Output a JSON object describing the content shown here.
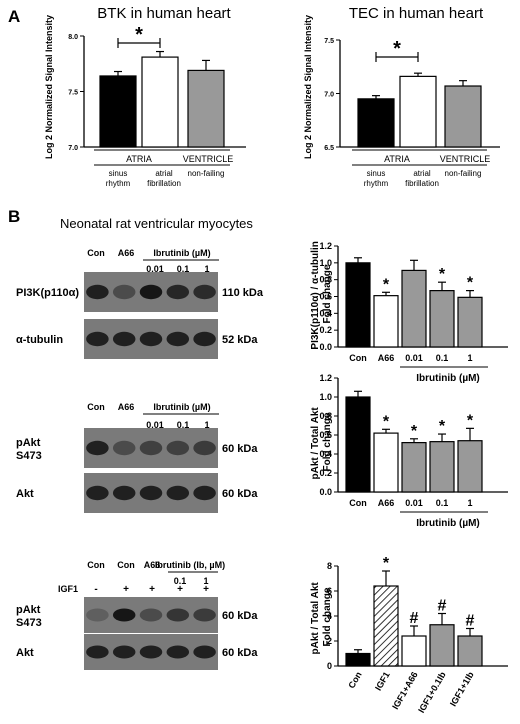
{
  "panels": {
    "A": "A",
    "B": "B"
  },
  "section_b_title": "Neonatal rat ventricular myocytes",
  "blots": [
    {
      "lanes_top": [
        "Con",
        "A66"
      ],
      "drug_header": "Ibrutinib (µM)",
      "doses": [
        "0.01",
        "0.1",
        "1"
      ],
      "rows": [
        {
          "label": "PI3K(p110α)",
          "size": "110 kDa"
        },
        {
          "label": "α-tubulin",
          "size": "52 kDa"
        }
      ]
    },
    {
      "lanes_top": [
        "Con",
        "A66"
      ],
      "drug_header": "Ibrutinib (µM)",
      "doses": [
        "0.01",
        "0.1",
        "1"
      ],
      "rows": [
        {
          "label": "pAkt\nS473",
          "size": "60 kDa"
        },
        {
          "label": "Akt",
          "size": "60 kDa"
        }
      ]
    },
    {
      "lanes_top": [
        "Con",
        "Con",
        "A66"
      ],
      "drug_header": "Ibrutinib (Ib, µM)",
      "doses": [
        "0.1",
        "1"
      ],
      "igf_label": "IGF1",
      "igf_signs": [
        "-",
        "+",
        "+",
        "+",
        "+"
      ],
      "rows": [
        {
          "label": "pAkt\nS473",
          "size": "60 kDa"
        },
        {
          "label": "Akt",
          "size": "60 kDa"
        }
      ]
    }
  ],
  "chart_data": [
    {
      "type": "bar",
      "title": "BTK in human heart",
      "ylabel": "Log 2 Normalized Signal Intensity",
      "ylim": [
        7.0,
        8.0
      ],
      "yticks": [
        "7.0",
        "7.5",
        "8.0"
      ],
      "categories": [
        "sinus rhythm",
        "atrial fibrillation",
        "non-failing"
      ],
      "values": [
        7.64,
        7.81,
        7.69
      ],
      "errors": [
        0.04,
        0.05,
        0.09
      ],
      "fills": [
        "#000000",
        "#ffffff",
        "#999999"
      ],
      "group_labels": [
        "ATRIA",
        "VENTRICLE"
      ],
      "annotations": [
        "*"
      ]
    },
    {
      "type": "bar",
      "title": "TEC in human heart",
      "ylabel": "Log 2 Normalized Signal Intensity",
      "ylim": [
        6.5,
        7.5
      ],
      "yticks": [
        "6.5",
        "7.0",
        "7.5"
      ],
      "categories": [
        "sinus rhythm",
        "atrial fibrillation",
        "non-failing"
      ],
      "values": [
        6.95,
        7.16,
        7.07
      ],
      "errors": [
        0.03,
        0.03,
        0.05
      ],
      "fills": [
        "#000000",
        "#ffffff",
        "#999999"
      ],
      "group_labels": [
        "ATRIA",
        "VENTRICLE"
      ],
      "annotations": [
        "*"
      ]
    },
    {
      "type": "bar",
      "ylabel": "PI3K(p110α) / α-tubulin Fold change",
      "ylim": [
        0.0,
        1.2
      ],
      "yticks": [
        "0.0",
        "0.2",
        "0.4",
        "0.6",
        "0.8",
        "1.0",
        "1.2"
      ],
      "categories": [
        "Con",
        "A66",
        "0.01",
        "0.1",
        "1"
      ],
      "values": [
        1.0,
        0.61,
        0.91,
        0.67,
        0.59
      ],
      "errors": [
        0.06,
        0.04,
        0.12,
        0.1,
        0.08
      ],
      "fills": [
        "#000000",
        "#ffffff",
        "#999999",
        "#999999",
        "#999999"
      ],
      "stars": [
        "",
        "*",
        "",
        "*",
        "*"
      ],
      "group_label": "Ibrutinib (µM)"
    },
    {
      "type": "bar",
      "ylabel": "pAkt / Total Akt Fold change",
      "ylim": [
        0.0,
        1.2
      ],
      "yticks": [
        "0.0",
        "0.2",
        "0.4",
        "0.6",
        "0.8",
        "1.0",
        "1.2"
      ],
      "categories": [
        "Con",
        "A66",
        "0.01",
        "0.1",
        "1"
      ],
      "values": [
        1.0,
        0.62,
        0.52,
        0.53,
        0.54
      ],
      "errors": [
        0.06,
        0.04,
        0.04,
        0.08,
        0.13
      ],
      "fills": [
        "#000000",
        "#ffffff",
        "#999999",
        "#999999",
        "#999999"
      ],
      "stars": [
        "",
        "*",
        "*",
        "*",
        "*"
      ],
      "group_label": "Ibrutinib (µM)"
    },
    {
      "type": "bar",
      "ylabel": "pAkt / Total Akt Fold change",
      "ylim": [
        0,
        8
      ],
      "yticks": [
        "0",
        "2",
        "4",
        "6",
        "8"
      ],
      "categories": [
        "Con",
        "IGF1",
        "IGF1+A66",
        "IGF1+0.1Ib",
        "IGF1+1Ib"
      ],
      "values": [
        1.0,
        6.4,
        2.4,
        3.3,
        2.4
      ],
      "errors": [
        0.3,
        1.2,
        0.8,
        0.9,
        0.6
      ],
      "fills": [
        "#000000",
        "hatch",
        "#ffffff",
        "#999999",
        "#999999"
      ],
      "stars": [
        "",
        "*",
        "#",
        "#",
        "#"
      ]
    }
  ]
}
